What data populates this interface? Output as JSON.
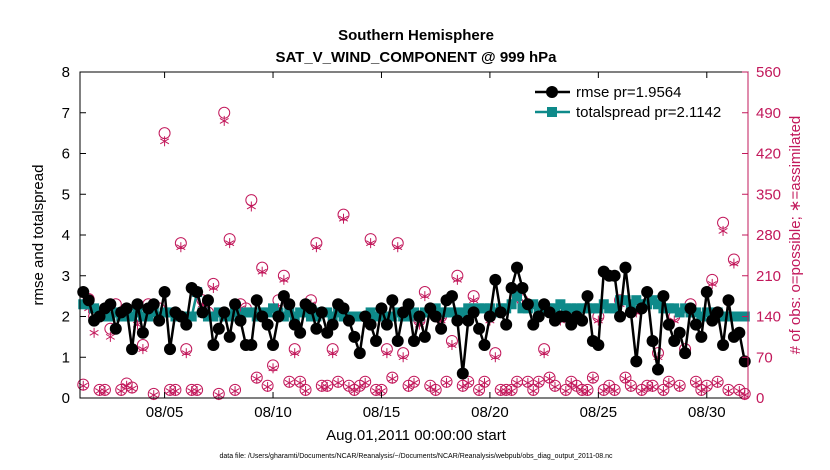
{
  "chart_data": {
    "type": "line",
    "title": "Southern Hemisphere",
    "subtitle": "SAT_V_WIND_COMPONENT @ 999 hPa",
    "xlabel": "Aug.01,2011 00:00:00 start",
    "ylabel": "rmse and totalspread",
    "ylabel_right": "# of obs: o=possible; ∗=assimilated",
    "footnote": "data file: /Users/gharamti/Documents/NCAR/Reanalysis/~/Documents/NCAR/Reanalysis/webpub/obs_diag_output_2011-08.nc",
    "xlim": [
      1.1,
      31.9
    ],
    "ylim": [
      0,
      8
    ],
    "ylim_right": [
      0,
      560
    ],
    "x_ticks": [
      5,
      10,
      15,
      20,
      25,
      30
    ],
    "x_tick_labels": [
      "08/05",
      "08/10",
      "08/15",
      "08/20",
      "08/25",
      "08/30"
    ],
    "y_ticks": [
      0,
      1,
      2,
      3,
      4,
      5,
      6,
      7,
      8
    ],
    "y_ticks_right": [
      0,
      70,
      140,
      210,
      280,
      350,
      420,
      490,
      560
    ],
    "colors": {
      "rmse": "#000000",
      "totalspread": "#0e8a8a",
      "obs": "#c2185b"
    },
    "series": [
      {
        "name": "rmse",
        "legend": "rmse pr=1.9564",
        "x": [
          1.25,
          1.5,
          1.75,
          2.0,
          2.25,
          2.5,
          2.75,
          3.0,
          3.25,
          3.5,
          3.75,
          4.0,
          4.25,
          4.5,
          4.75,
          5.0,
          5.25,
          5.5,
          5.75,
          6.0,
          6.25,
          6.5,
          6.75,
          7.0,
          7.25,
          7.5,
          7.75,
          8.0,
          8.25,
          8.5,
          8.75,
          9.0,
          9.25,
          9.5,
          9.75,
          10.0,
          10.25,
          10.5,
          10.75,
          11.0,
          11.25,
          11.5,
          11.75,
          12.0,
          12.25,
          12.5,
          12.75,
          13.0,
          13.25,
          13.5,
          13.75,
          14.0,
          14.25,
          14.5,
          14.75,
          15.0,
          15.25,
          15.5,
          15.75,
          16.0,
          16.25,
          16.5,
          16.75,
          17.0,
          17.25,
          17.5,
          17.75,
          18.0,
          18.25,
          18.5,
          18.75,
          19.0,
          19.25,
          19.5,
          19.75,
          20.0,
          20.25,
          20.5,
          20.75,
          21.0,
          21.25,
          21.5,
          21.75,
          22.0,
          22.25,
          22.5,
          22.75,
          23.0,
          23.25,
          23.5,
          23.75,
          24.0,
          24.25,
          24.5,
          24.75,
          25.0,
          25.25,
          25.5,
          25.75,
          26.0,
          26.25,
          26.5,
          26.75,
          27.0,
          27.25,
          27.5,
          27.75,
          28.0,
          28.25,
          28.5,
          28.75,
          29.0,
          29.25,
          29.5,
          29.75,
          30.0,
          30.25,
          30.5,
          30.75,
          31.0,
          31.25,
          31.5,
          31.75
        ],
        "values": [
          2.6,
          2.4,
          1.9,
          2.0,
          2.2,
          2.3,
          1.7,
          2.1,
          2.2,
          1.2,
          2.3,
          1.6,
          2.2,
          2.3,
          1.9,
          2.6,
          1.2,
          2.1,
          2.0,
          1.8,
          2.7,
          2.6,
          2.1,
          2.4,
          1.3,
          1.7,
          2.1,
          1.5,
          2.3,
          1.9,
          1.3,
          1.3,
          2.4,
          2.0,
          1.8,
          1.3,
          2.0,
          2.5,
          2.3,
          1.8,
          1.6,
          2.3,
          2.2,
          1.7,
          2.1,
          1.6,
          1.8,
          2.3,
          2.2,
          1.9,
          1.5,
          1.1,
          2.0,
          1.8,
          1.4,
          2.2,
          1.8,
          2.4,
          1.4,
          2.1,
          2.3,
          1.4,
          2.0,
          1.5,
          2.2,
          2.0,
          1.7,
          2.4,
          2.5,
          1.9,
          0.6,
          1.9,
          2.1,
          1.7,
          1.3,
          2.0,
          2.9,
          2.1,
          1.8,
          2.7,
          3.2,
          2.7,
          2.3,
          1.8,
          2.0,
          2.3,
          2.1,
          1.9,
          2.0,
          2.0,
          1.8,
          2.0,
          1.9,
          2.5,
          1.4,
          1.3,
          3.1,
          3.0,
          3.0,
          2.0,
          3.2,
          2.1,
          0.9,
          2.2,
          2.6,
          1.4,
          0.7,
          2.5,
          1.8,
          1.4,
          1.6,
          1.1,
          2.2,
          1.8,
          1.5,
          2.6,
          1.9,
          2.1,
          1.3,
          2.4,
          1.5,
          1.6,
          0.9
        ],
        "marker": "filled-circle"
      },
      {
        "name": "totalspread",
        "legend": "totalspread pr=2.1142",
        "x": [
          1.25,
          1.5,
          1.75,
          2.0,
          2.25,
          2.5,
          2.75,
          3.0,
          3.25,
          3.5,
          3.75,
          4.0,
          4.25,
          4.5,
          4.75,
          5.0,
          5.25,
          5.5,
          5.75,
          6.0,
          6.25,
          6.5,
          6.75,
          7.0,
          7.25,
          7.5,
          7.75,
          8.0,
          8.25,
          8.5,
          8.75,
          9.0,
          9.25,
          9.5,
          9.75,
          10.0,
          10.25,
          10.5,
          10.75,
          11.0,
          11.25,
          11.5,
          11.75,
          12.0,
          12.25,
          12.5,
          12.75,
          13.0,
          13.25,
          13.5,
          13.75,
          14.0,
          14.25,
          14.5,
          14.75,
          15.0,
          15.25,
          15.5,
          15.75,
          16.0,
          16.25,
          16.5,
          16.75,
          17.0,
          17.25,
          17.5,
          17.75,
          18.0,
          18.25,
          18.5,
          18.75,
          19.0,
          19.25,
          19.5,
          19.75,
          20.0,
          20.25,
          20.5,
          20.75,
          21.0,
          21.25,
          21.5,
          21.75,
          22.0,
          22.25,
          22.5,
          22.75,
          23.0,
          23.25,
          23.5,
          23.75,
          24.0,
          24.25,
          24.5,
          24.75,
          25.0,
          25.25,
          25.5,
          25.75,
          26.0,
          26.25,
          26.5,
          26.75,
          27.0,
          27.25,
          27.5,
          27.75,
          28.0,
          28.25,
          28.5,
          28.75,
          29.0,
          29.25,
          29.5,
          29.75,
          30.0,
          30.25,
          30.5,
          30.75,
          31.0,
          31.25,
          31.5,
          31.75
        ],
        "values": [
          2.3,
          2.3,
          2.2,
          2.1,
          2.0,
          2.0,
          2.1,
          2.0,
          2.0,
          2.0,
          2.1,
          2.0,
          2.0,
          2.1,
          2.0,
          2.1,
          2.1,
          2.0,
          2.0,
          2.0,
          2.0,
          2.6,
          2.1,
          2.0,
          2.0,
          2.1,
          2.0,
          2.0,
          2.1,
          2.0,
          2.1,
          2.1,
          2.0,
          2.1,
          2.1,
          2.2,
          2.1,
          2.0,
          2.1,
          2.0,
          2.1,
          2.1,
          2.0,
          2.0,
          2.1,
          2.1,
          2.0,
          2.1,
          2.0,
          2.0,
          2.0,
          2.0,
          2.0,
          2.1,
          2.0,
          2.0,
          2.0,
          2.0,
          2.1,
          2.0,
          2.0,
          2.1,
          2.0,
          2.1,
          2.1,
          2.2,
          2.1,
          2.1,
          2.1,
          2.1,
          2.1,
          2.2,
          2.2,
          2.2,
          2.2,
          2.2,
          2.1,
          2.2,
          2.2,
          2.3,
          2.5,
          2.2,
          2.2,
          2.3,
          2.2,
          2.2,
          2.2,
          2.2,
          2.3,
          2.2,
          2.2,
          2.2,
          2.2,
          2.2,
          2.2,
          2.2,
          2.3,
          2.2,
          2.2,
          2.4,
          2.4,
          2.3,
          2.4,
          2.3,
          2.3,
          2.4,
          2.3,
          2.2,
          2.2,
          2.2,
          2.1,
          2.2,
          2.1,
          2.1,
          2.0,
          2.1,
          2.1,
          2.1,
          2.0,
          2.0,
          2.0,
          2.0,
          2.0
        ],
        "marker": "filled-square"
      },
      {
        "name": "obs_possible",
        "axis": "right",
        "marker": "open-circle",
        "x": [
          1.25,
          1.5,
          1.75,
          2.0,
          2.25,
          2.5,
          2.75,
          3.0,
          3.25,
          3.5,
          3.75,
          4.0,
          4.25,
          4.5,
          4.75,
          5.0,
          5.25,
          5.5,
          5.75,
          6.0,
          6.25,
          6.5,
          6.75,
          7.0,
          7.25,
          7.5,
          7.75,
          8.0,
          8.25,
          8.5,
          8.75,
          9.0,
          9.25,
          9.5,
          9.75,
          10.0,
          10.25,
          10.5,
          10.75,
          11.0,
          11.25,
          11.5,
          11.75,
          12.0,
          12.25,
          12.5,
          12.75,
          13.0,
          13.25,
          13.5,
          13.75,
          14.0,
          14.25,
          14.5,
          14.75,
          15.0,
          15.25,
          15.5,
          15.75,
          16.0,
          16.25,
          16.5,
          16.75,
          17.0,
          17.25,
          17.5,
          17.75,
          18.0,
          18.25,
          18.5,
          18.75,
          19.0,
          19.25,
          19.5,
          19.75,
          20.0,
          20.25,
          20.5,
          20.75,
          21.0,
          21.25,
          21.5,
          21.75,
          22.0,
          22.25,
          22.5,
          22.75,
          23.0,
          23.25,
          23.5,
          23.75,
          24.0,
          24.25,
          24.5,
          24.75,
          25.0,
          25.25,
          25.5,
          25.75,
          26.0,
          26.25,
          26.5,
          26.75,
          27.0,
          27.25,
          27.5,
          27.75,
          28.0,
          28.25,
          28.5,
          28.75,
          29.0,
          29.25,
          29.5,
          29.75,
          30.0,
          30.25,
          30.5,
          30.75,
          31.0,
          31.25,
          31.5,
          31.75
        ],
        "values": [
          23,
          170,
          140,
          14,
          14,
          119,
          161,
          14,
          25,
          18,
          140,
          91,
          161,
          7,
          154,
          455,
          14,
          14,
          266,
          84,
          14,
          14,
          168,
          147,
          196,
          7,
          490,
          273,
          14,
          161,
          154,
          340,
          35,
          224,
          21,
          56,
          168,
          210,
          28,
          84,
          28,
          14,
          168,
          266,
          21,
          21,
          84,
          28,
          315,
          21,
          14,
          21,
          28,
          273,
          14,
          14,
          84,
          35,
          266,
          77,
          21,
          28,
          133,
          182,
          21,
          14,
          140,
          28,
          98,
          210,
          21,
          28,
          175,
          14,
          28,
          140,
          77,
          14,
          14,
          14,
          28,
          168,
          28,
          14,
          28,
          84,
          35,
          21,
          140,
          14,
          28,
          21,
          14,
          14,
          35,
          140,
          14,
          21,
          14,
          168,
          35,
          21,
          154,
          14,
          21,
          21,
          77,
          14,
          28,
          140,
          21,
          84,
          161,
          28,
          14,
          21,
          203,
          28,
          301,
          14,
          238,
          14,
          7
        ],
        "color": "#c2185b"
      },
      {
        "name": "obs_assimilated",
        "axis": "right",
        "marker": "asterisk",
        "x": [
          1.25,
          1.5,
          1.75,
          2.0,
          2.25,
          2.5,
          2.75,
          3.0,
          3.25,
          3.5,
          3.75,
          4.0,
          4.25,
          4.5,
          4.75,
          5.0,
          5.25,
          5.5,
          5.75,
          6.0,
          6.25,
          6.5,
          6.75,
          7.0,
          7.25,
          7.5,
          7.75,
          8.0,
          8.25,
          8.5,
          8.75,
          9.0,
          9.25,
          9.5,
          9.75,
          10.0,
          10.25,
          10.5,
          10.75,
          11.0,
          11.25,
          11.5,
          11.75,
          12.0,
          12.25,
          12.5,
          12.75,
          13.0,
          13.25,
          13.5,
          13.75,
          14.0,
          14.25,
          14.5,
          14.75,
          15.0,
          15.25,
          15.5,
          15.75,
          16.0,
          16.25,
          16.5,
          16.75,
          17.0,
          17.25,
          17.5,
          17.75,
          18.0,
          18.25,
          18.5,
          18.75,
          19.0,
          19.25,
          19.5,
          19.75,
          20.0,
          20.25,
          20.5,
          20.75,
          21.0,
          21.25,
          21.5,
          21.75,
          22.0,
          22.25,
          22.5,
          22.75,
          23.0,
          23.25,
          23.5,
          23.75,
          24.0,
          24.25,
          24.5,
          24.75,
          25.0,
          25.25,
          25.5,
          25.75,
          26.0,
          26.25,
          26.5,
          26.75,
          27.0,
          27.25,
          27.5,
          27.75,
          28.0,
          28.25,
          28.5,
          28.75,
          29.0,
          29.25,
          29.5,
          29.75,
          30.0,
          30.25,
          30.5,
          30.75,
          31.0,
          31.25,
          31.5,
          31.75
        ],
        "values": [
          21,
          154,
          112,
          12,
          12,
          105,
          147,
          12,
          21,
          16,
          126,
          84,
          154,
          5,
          140,
          441,
          12,
          12,
          259,
          77,
          12,
          12,
          161,
          140,
          189,
          5,
          476,
          266,
          12,
          154,
          147,
          329,
          33,
          217,
          19,
          51,
          154,
          203,
          26,
          77,
          26,
          12,
          161,
          259,
          19,
          19,
          77,
          26,
          308,
          19,
          12,
          19,
          26,
          266,
          12,
          12,
          77,
          33,
          259,
          70,
          19,
          26,
          126,
          175,
          19,
          12,
          133,
          26,
          91,
          203,
          19,
          26,
          168,
          12,
          26,
          133,
          70,
          12,
          12,
          12,
          26,
          161,
          26,
          12,
          26,
          77,
          33,
          19,
          133,
          12,
          26,
          19,
          12,
          12,
          33,
          133,
          12,
          19,
          12,
          161,
          33,
          19,
          147,
          12,
          19,
          19,
          70,
          12,
          26,
          133,
          19,
          77,
          154,
          26,
          12,
          19,
          196,
          26,
          287,
          12,
          231,
          12,
          5
        ],
        "color": "#c2185b"
      }
    ],
    "legend_position": "top-right"
  }
}
